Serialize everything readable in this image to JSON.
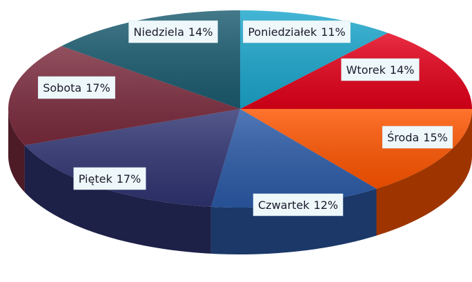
{
  "chart_data": {
    "type": "pie",
    "categories": [
      "Poniedziałek",
      "Wtorek",
      "Środa",
      "Czwartek",
      "Piętek",
      "Sobota",
      "Niedziela"
    ],
    "values": [
      11,
      14,
      15,
      12,
      17,
      17,
      14
    ],
    "value_labels": [
      "11%",
      "14%",
      "15%",
      "12%",
      "17%",
      "17%",
      "14%"
    ],
    "colors": [
      "#1ba6cc",
      "#e4001a",
      "#ff5500",
      "#2b5ba8",
      "#2f3472",
      "#7b2b3d",
      "#1b5c70"
    ]
  }
}
